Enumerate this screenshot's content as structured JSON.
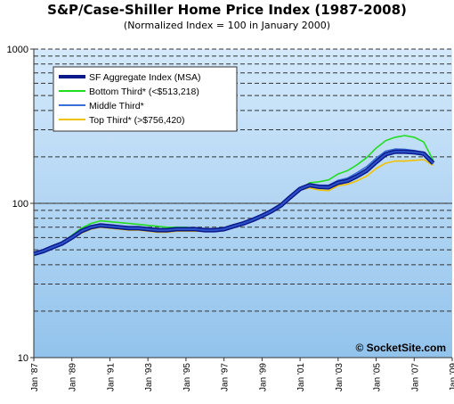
{
  "chart_data": {
    "type": "line",
    "title": "S&P/Case-Shiller Home Price Index (1987-2008)",
    "subtitle": "(Normalized Index = 100 in January 2000)",
    "y_scale": "log",
    "ylim": [
      10,
      1000
    ],
    "y_ticks": [
      "10",
      "100",
      "1000"
    ],
    "x_ticks": [
      "Jan '87",
      "Jan '89",
      "Jan '91",
      "Jan '93",
      "Jan '95",
      "Jan '97",
      "Jan '99",
      "Jan '01",
      "Jan '03",
      "Jan '05",
      "Jan '07",
      "Jan '09"
    ],
    "x_tick_years": [
      1987,
      1989,
      1991,
      1993,
      1995,
      1997,
      1999,
      2001,
      2003,
      2005,
      2007,
      2009
    ],
    "xlim": [
      1987,
      2009
    ],
    "grid": "horizontal dashed",
    "legend_position": "top-left",
    "watermark": "© SocketSite.com",
    "series": [
      {
        "name": "SF Aggregate Index (MSA)",
        "color": "#0a1a8c",
        "x": [
          1987.0,
          1987.5,
          1988.0,
          1988.5,
          1989.0,
          1989.5,
          1990.0,
          1990.5,
          1991.0,
          1991.5,
          1992.0,
          1992.5,
          1993.0,
          1993.5,
          1994.0,
          1994.5,
          1995.0,
          1995.5,
          1996.0,
          1996.5,
          1997.0,
          1997.5,
          1998.0,
          1998.5,
          1999.0,
          1999.5,
          2000.0,
          2000.5,
          2001.0,
          2001.5,
          2002.0,
          2002.5,
          2003.0,
          2003.5,
          2004.0,
          2004.5,
          2005.0,
          2005.5,
          2006.0,
          2006.5,
          2007.0,
          2007.5,
          2008.0
        ],
        "values": [
          47,
          49,
          52,
          55,
          60,
          66,
          70,
          72,
          71,
          70,
          69,
          69,
          68,
          67,
          67,
          68,
          68,
          68,
          67,
          67,
          68,
          71,
          74,
          78,
          83,
          89,
          97,
          110,
          124,
          131,
          128,
          127,
          136,
          140,
          150,
          163,
          185,
          208,
          216,
          216,
          214,
          210,
          182
        ]
      },
      {
        "name": "Bottom Third* (<$513,218)",
        "color": "#22dd22",
        "x": [
          1987.0,
          1987.5,
          1988.0,
          1988.5,
          1989.0,
          1989.5,
          1990.0,
          1990.5,
          1991.0,
          1991.5,
          1992.0,
          1992.5,
          1993.0,
          1993.5,
          1994.0,
          1994.5,
          1995.0,
          1995.5,
          1996.0,
          1996.5,
          1997.0,
          1997.5,
          1998.0,
          1998.5,
          1999.0,
          1999.5,
          2000.0,
          2000.5,
          2001.0,
          2001.5,
          2002.0,
          2002.5,
          2003.0,
          2003.5,
          2004.0,
          2004.5,
          2005.0,
          2005.5,
          2006.0,
          2006.5,
          2007.0,
          2007.5,
          2008.0
        ],
        "values": [
          46,
          49,
          52,
          56,
          62,
          69,
          74,
          77,
          76,
          75,
          74,
          73,
          72,
          71,
          70,
          70,
          70,
          69,
          68,
          68,
          69,
          71,
          74,
          77,
          82,
          88,
          96,
          108,
          123,
          136,
          138,
          142,
          155,
          163,
          178,
          198,
          228,
          255,
          268,
          275,
          268,
          250,
          190
        ]
      },
      {
        "name": "Middle Third*",
        "color": "#3a6fd8",
        "x": [
          1987.0,
          1987.5,
          1988.0,
          1988.5,
          1989.0,
          1989.5,
          1990.0,
          1990.5,
          1991.0,
          1991.5,
          1992.0,
          1992.5,
          1993.0,
          1993.5,
          1994.0,
          1994.5,
          1995.0,
          1995.5,
          1996.0,
          1996.5,
          1997.0,
          1997.5,
          1998.0,
          1998.5,
          1999.0,
          1999.5,
          2000.0,
          2000.5,
          2001.0,
          2001.5,
          2002.0,
          2002.5,
          2003.0,
          2003.5,
          2004.0,
          2004.5,
          2005.0,
          2005.5,
          2006.0,
          2006.5,
          2007.0,
          2007.5,
          2008.0
        ],
        "values": [
          47,
          49,
          52,
          55,
          60,
          66,
          70,
          73,
          72,
          70,
          69,
          69,
          68,
          67,
          67,
          68,
          68,
          68,
          67,
          67,
          68,
          71,
          74,
          78,
          83,
          89,
          97,
          110,
          125,
          133,
          131,
          131,
          141,
          146,
          158,
          173,
          196,
          218,
          225,
          224,
          220,
          214,
          180
        ]
      },
      {
        "name": "Top Third* (>$756,420)",
        "color": "#f2c100",
        "x": [
          1987.0,
          1987.5,
          1988.0,
          1988.5,
          1989.0,
          1989.5,
          1990.0,
          1990.5,
          1991.0,
          1991.5,
          1992.0,
          1992.5,
          1993.0,
          1993.5,
          1994.0,
          1994.5,
          1995.0,
          1995.5,
          1996.0,
          1996.5,
          1997.0,
          1997.5,
          1998.0,
          1998.5,
          1999.0,
          1999.5,
          2000.0,
          2000.5,
          2001.0,
          2001.5,
          2002.0,
          2002.5,
          2003.0,
          2003.5,
          2004.0,
          2004.5,
          2005.0,
          2005.5,
          2006.0,
          2006.5,
          2007.0,
          2007.5,
          2008.0
        ],
        "values": [
          48,
          49,
          52,
          55,
          59,
          64,
          68,
          70,
          69,
          68,
          67,
          67,
          66,
          65,
          65,
          66,
          66,
          66,
          66,
          66,
          67,
          70,
          73,
          77,
          82,
          88,
          96,
          109,
          122,
          126,
          122,
          121,
          130,
          133,
          140,
          150,
          168,
          182,
          188,
          188,
          190,
          192,
          176
        ]
      }
    ]
  }
}
